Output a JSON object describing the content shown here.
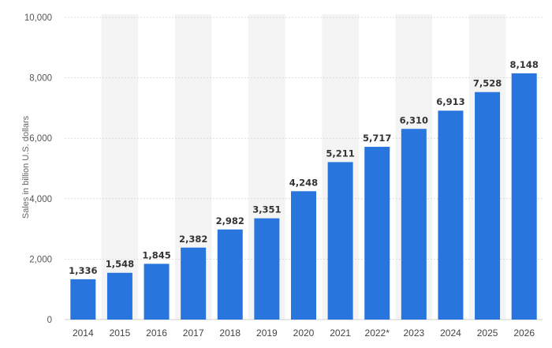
{
  "chart_data": {
    "type": "bar",
    "title": "",
    "xlabel": "",
    "ylabel": "Sales in billion U.S. dollars",
    "categories": [
      "2014",
      "2015",
      "2016",
      "2017",
      "2018",
      "2019",
      "2020",
      "2021",
      "2022*",
      "2023",
      "2024",
      "2025",
      "2026"
    ],
    "values": [
      1336,
      1548,
      1845,
      2382,
      2982,
      3351,
      4248,
      5211,
      5717,
      6310,
      6913,
      7528,
      8148
    ],
    "value_labels": [
      "1,336",
      "1,548",
      "1,845",
      "2,382",
      "2,982",
      "3,351",
      "4,248",
      "5,211",
      "5,717",
      "6,310",
      "6,913",
      "7,528",
      "8,148"
    ],
    "ylim": [
      0,
      10000
    ],
    "yticks": [
      0,
      2000,
      4000,
      6000,
      8000,
      10000
    ],
    "ytick_labels": [
      "0",
      "2,000",
      "4,000",
      "6,000",
      "8,000",
      "10,000"
    ],
    "grid": true,
    "grid_style": "dotted horizontal",
    "legend": "none",
    "colors": {
      "bar": "#2876DD",
      "alt_column_band": "#F4F4F4",
      "grid": "#D0D0D0",
      "text": "#333333"
    }
  }
}
